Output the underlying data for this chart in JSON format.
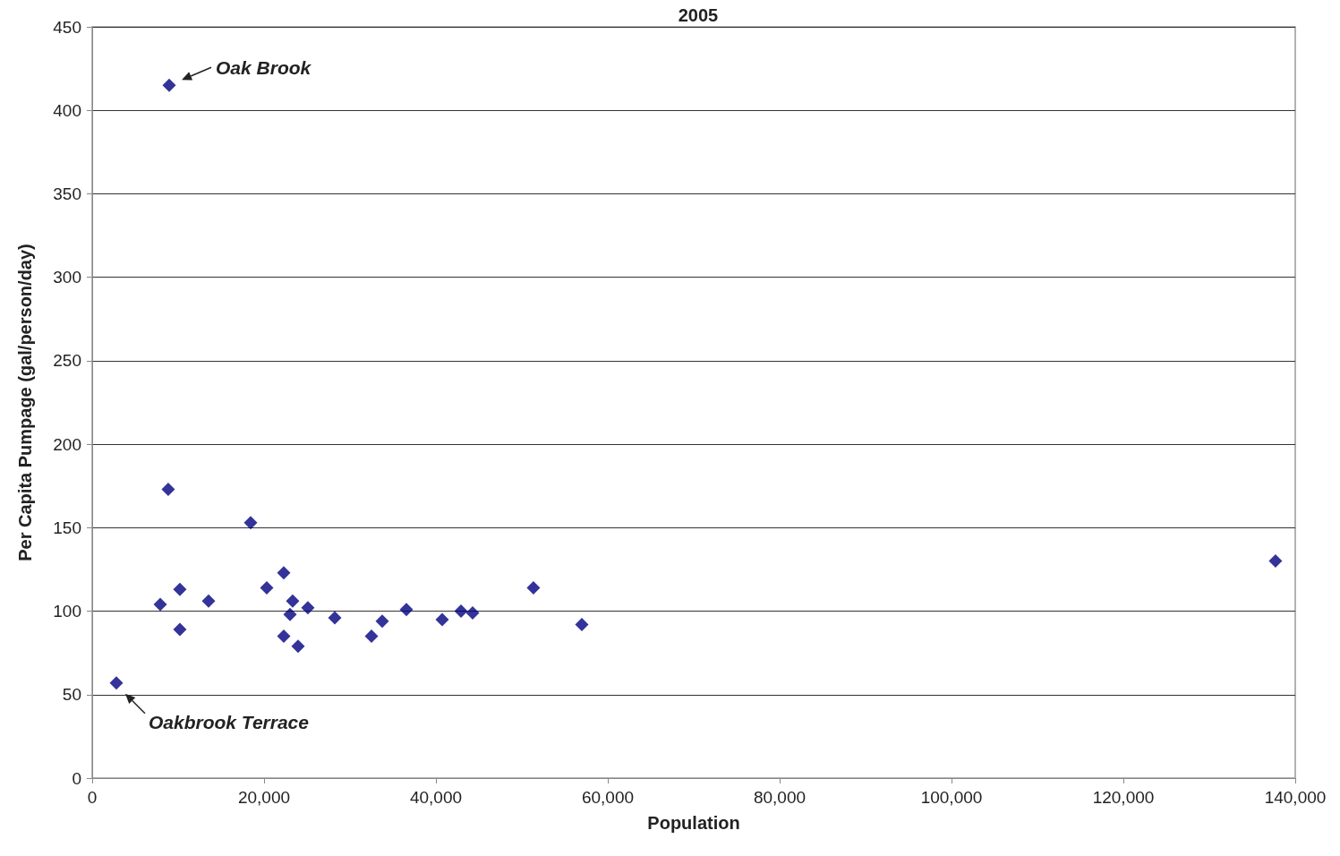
{
  "chart_data": {
    "type": "scatter",
    "title": "2005",
    "xlabel": "Population",
    "ylabel": "Per Capita Pumpage (gal/person/day)",
    "x": [
      2810,
      8960,
      8850,
      7920,
      10200,
      10200,
      13540,
      18440,
      20310,
      22290,
      22290,
      23330,
      23020,
      25100,
      23960,
      28230,
      32500,
      33750,
      36560,
      40730,
      42920,
      44270,
      51350,
      56980,
      137700
    ],
    "series": [
      {
        "color": "#000080",
        "values": [
          57,
          415,
          173,
          104,
          113,
          89,
          106,
          153,
          114,
          123,
          85,
          106,
          98,
          102,
          79,
          96,
          85,
          94,
          101,
          95,
          100,
          99,
          114,
          92,
          130
        ]
      }
    ],
    "xlim": [
      0,
      140000
    ],
    "xticks": [
      0,
      {
        "value": 20000,
        "label": "20,000"
      },
      {
        "value": 40000,
        "label": "40,000"
      },
      {
        "value": 60000,
        "label": "60,000"
      },
      {
        "value": 80000,
        "label": "80,000"
      },
      {
        "value": 100000,
        "label": "100,000"
      },
      {
        "value": 120000,
        "label": "120,000"
      },
      {
        "value": 140000,
        "label": "140,000"
      }
    ],
    "ylim": [
      0,
      450
    ],
    "yticks": [
      0,
      50,
      100,
      150,
      200,
      250,
      300,
      350,
      400,
      450
    ],
    "grid": "y",
    "marker": "diamond",
    "annotations": [
      {
        "text": "Oak Brook",
        "x": 8960,
        "y": 415
      },
      {
        "text": "Oakbrook Terrace",
        "x": 2810,
        "y": 57
      }
    ]
  }
}
